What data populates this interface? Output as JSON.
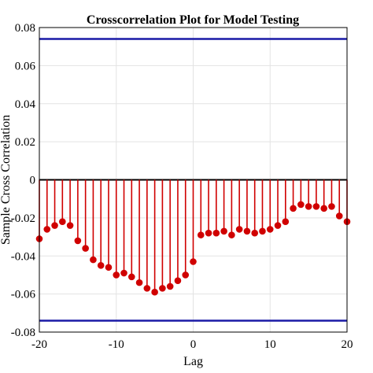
{
  "chart_data": {
    "type": "stem",
    "title": "Crosscorrelation Plot for Model Testing",
    "xlabel": "Lag",
    "ylabel": "Sample Cross Correlation",
    "xlim": [
      -20,
      20
    ],
    "ylim": [
      -0.08,
      0.08
    ],
    "xticks": [
      -20,
      -10,
      0,
      10,
      20
    ],
    "yticks": [
      -0.08,
      -0.06,
      -0.04,
      -0.02,
      0,
      0.02,
      0.04,
      0.06,
      0.08
    ],
    "ytick_labels": [
      "-0.08",
      "-0.06",
      "-0.04",
      "-0.02",
      "0",
      "0.02",
      "0.04",
      "0.06",
      "0.08"
    ],
    "grid": true,
    "x": [
      -20,
      -19,
      -18,
      -17,
      -16,
      -15,
      -14,
      -13,
      -12,
      -11,
      -10,
      -9,
      -8,
      -7,
      -6,
      -5,
      -4,
      -3,
      -2,
      -1,
      0,
      1,
      2,
      3,
      4,
      5,
      6,
      7,
      8,
      9,
      10,
      11,
      12,
      13,
      14,
      15,
      16,
      17,
      18,
      19,
      20
    ],
    "values": [
      -0.031,
      -0.026,
      -0.024,
      -0.022,
      -0.024,
      -0.032,
      -0.036,
      -0.042,
      -0.045,
      -0.046,
      -0.05,
      -0.049,
      -0.051,
      -0.054,
      -0.057,
      -0.059,
      -0.057,
      -0.056,
      -0.053,
      -0.05,
      -0.043,
      -0.029,
      -0.028,
      -0.028,
      -0.027,
      -0.029,
      -0.026,
      -0.027,
      -0.028,
      -0.027,
      -0.026,
      -0.024,
      -0.022,
      -0.015,
      -0.013,
      -0.014,
      -0.014,
      -0.015,
      -0.014,
      -0.019,
      -0.022
    ],
    "bounds": [
      0.074,
      -0.074
    ],
    "colors": {
      "stem": "#d00000",
      "bounds": "#1a1aa6",
      "zero": "#000000"
    }
  }
}
